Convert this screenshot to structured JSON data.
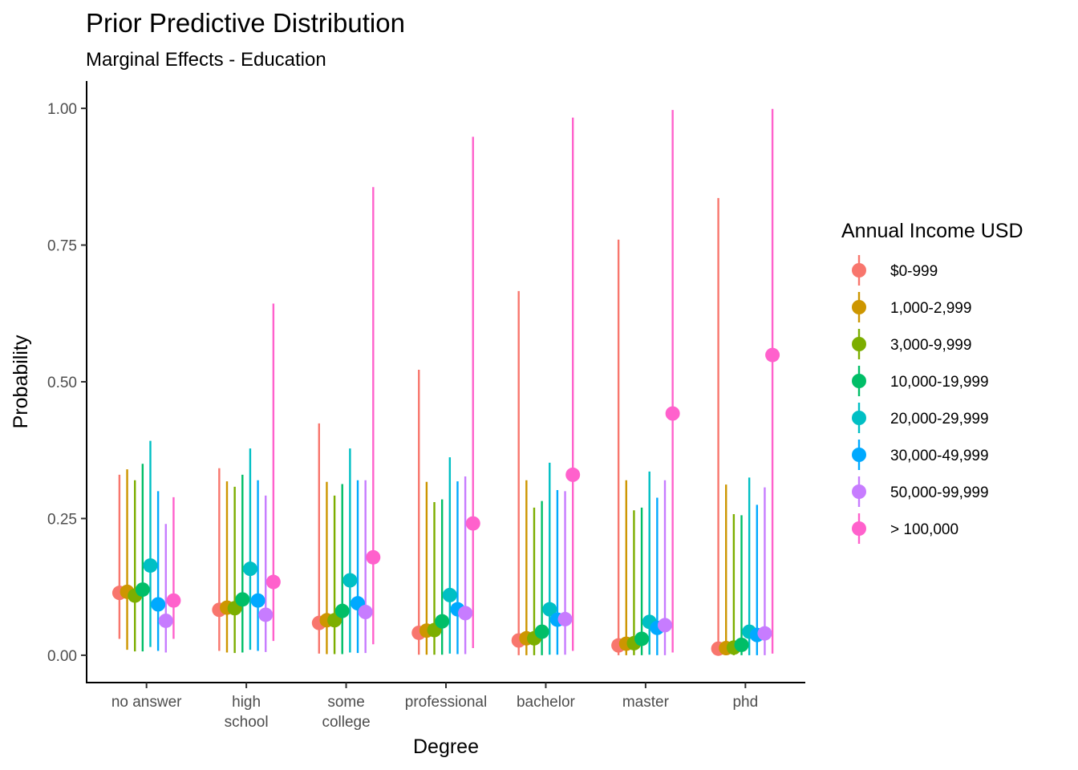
{
  "chart_data": {
    "type": "pointrange",
    "title": "Prior Predictive Distribution",
    "subtitle": "Marginal Effects - Education",
    "xlabel": "Degree",
    "ylabel": "Probability",
    "ylim": [
      -0.05,
      1.05
    ],
    "y_ticks": [
      0.0,
      0.25,
      0.5,
      0.75,
      1.0
    ],
    "y_tick_labels": [
      "0.00",
      "0.25",
      "0.50",
      "0.75",
      "1.00"
    ],
    "grid": false,
    "legend_position": "right",
    "categories": [
      "no answer",
      "high\nschool",
      "some\ncollege",
      "professional",
      "bachelor",
      "master",
      "phd"
    ],
    "legend_title": "Annual Income USD",
    "series": [
      {
        "name": "$0-999",
        "color": "#F8766D",
        "values": [
          0.114,
          0.083,
          0.059,
          0.041,
          0.027,
          0.018,
          0.012
        ],
        "lower": [
          0.03,
          0.008,
          0.003,
          0.001,
          0.0,
          0.0,
          0.0
        ],
        "upper": [
          0.33,
          0.342,
          0.424,
          0.522,
          0.666,
          0.76,
          0.836
        ]
      },
      {
        "name": "1,000-2,999",
        "color": "#CD9600",
        "values": [
          0.116,
          0.087,
          0.064,
          0.045,
          0.031,
          0.021,
          0.013
        ],
        "lower": [
          0.01,
          0.005,
          0.002,
          0.001,
          0.0,
          0.0,
          0.0
        ],
        "upper": [
          0.34,
          0.318,
          0.317,
          0.317,
          0.32,
          0.32,
          0.312
        ]
      },
      {
        "name": "3,000-9,999",
        "color": "#7CAE00",
        "values": [
          0.109,
          0.086,
          0.064,
          0.046,
          0.031,
          0.022,
          0.014
        ],
        "lower": [
          0.007,
          0.004,
          0.002,
          0.001,
          0.0,
          0.0,
          0.0
        ],
        "upper": [
          0.32,
          0.308,
          0.292,
          0.28,
          0.27,
          0.265,
          0.258
        ]
      },
      {
        "name": "10,000-19,999",
        "color": "#00BE67",
        "values": [
          0.12,
          0.102,
          0.081,
          0.062,
          0.043,
          0.03,
          0.019
        ],
        "lower": [
          0.007,
          0.005,
          0.002,
          0.001,
          0.0,
          0.0,
          0.0
        ],
        "upper": [
          0.35,
          0.33,
          0.313,
          0.285,
          0.282,
          0.27,
          0.256
        ]
      },
      {
        "name": "20,000-29,999",
        "color": "#00BFC4",
        "values": [
          0.164,
          0.158,
          0.137,
          0.11,
          0.084,
          0.061,
          0.043
        ],
        "lower": [
          0.015,
          0.01,
          0.005,
          0.003,
          0.001,
          0.001,
          0.0
        ],
        "upper": [
          0.392,
          0.378,
          0.378,
          0.362,
          0.352,
          0.336,
          0.325
        ]
      },
      {
        "name": "30,000-49,999",
        "color": "#00A9FF",
        "values": [
          0.093,
          0.1,
          0.095,
          0.084,
          0.065,
          0.05,
          0.037
        ],
        "lower": [
          0.008,
          0.008,
          0.004,
          0.002,
          0.001,
          0.0,
          0.0
        ],
        "upper": [
          0.3,
          0.32,
          0.32,
          0.318,
          0.302,
          0.288,
          0.275
        ]
      },
      {
        "name": "50,000-99,999",
        "color": "#C77CFF",
        "values": [
          0.063,
          0.074,
          0.079,
          0.077,
          0.066,
          0.055,
          0.04
        ],
        "lower": [
          0.005,
          0.006,
          0.004,
          0.002,
          0.001,
          0.0,
          0.0
        ],
        "upper": [
          0.24,
          0.292,
          0.32,
          0.327,
          0.3,
          0.32,
          0.307
        ]
      },
      {
        "name": "> 100,000",
        "color": "#FF61CC",
        "values": [
          0.1,
          0.134,
          0.179,
          0.241,
          0.33,
          0.442,
          0.549
        ],
        "lower": [
          0.03,
          0.026,
          0.02,
          0.013,
          0.008,
          0.005,
          0.003
        ],
        "upper": [
          0.289,
          0.643,
          0.856,
          0.948,
          0.983,
          0.997,
          0.999
        ]
      }
    ]
  }
}
